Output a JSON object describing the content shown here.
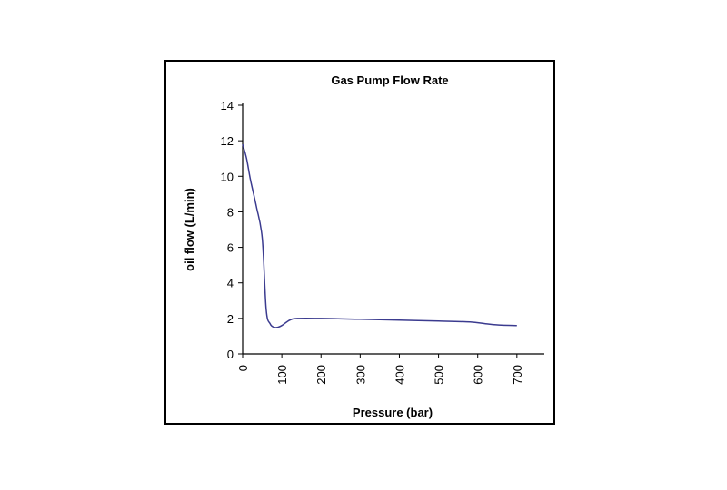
{
  "chart_data": {
    "type": "line",
    "title": "Gas Pump Flow Rate",
    "xlabel": "Pressure  (bar)",
    "ylabel": "oil flow (L/min)",
    "xlim": [
      0,
      770
    ],
    "ylim": [
      0,
      14
    ],
    "x_ticks": [
      "0",
      "100",
      "200",
      "300",
      "400",
      "500",
      "600",
      "700"
    ],
    "y_ticks": [
      "0",
      "2",
      "4",
      "6",
      "8",
      "10",
      "12",
      "14"
    ],
    "grid": false,
    "series": [
      {
        "color": "#3b3b8f",
        "x": [
          0,
          10,
          20,
          35,
          50,
          60,
          70,
          80,
          90,
          100,
          120,
          140,
          200,
          300,
          400,
          500,
          580,
          620,
          660,
          700
        ],
        "y": [
          11.8,
          11.0,
          9.8,
          8.3,
          6.5,
          2.5,
          1.7,
          1.5,
          1.5,
          1.6,
          1.9,
          2.0,
          2.0,
          1.95,
          1.9,
          1.85,
          1.8,
          1.7,
          1.62,
          1.6
        ]
      }
    ]
  }
}
